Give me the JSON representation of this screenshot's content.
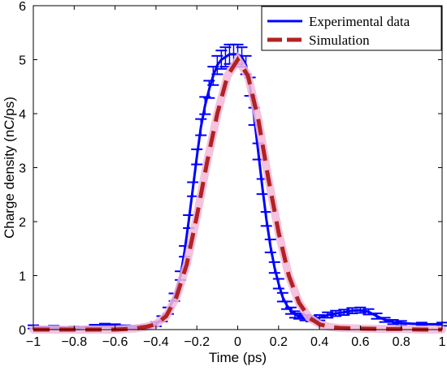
{
  "chart_data": {
    "type": "line",
    "xlabel": "Time (ps)",
    "ylabel": "Charge density (nC/ps)",
    "xlim": [
      -1,
      1
    ],
    "ylim": [
      0,
      6
    ],
    "xticks": [
      -1,
      -0.8,
      -0.6,
      -0.4,
      -0.2,
      0,
      0.2,
      0.4,
      0.6,
      0.8,
      1
    ],
    "yticks": [
      0,
      1,
      2,
      3,
      4,
      5,
      6
    ],
    "xtick_labels": [
      "−1",
      "−0.8",
      "−0.6",
      "−0.4",
      "−0.2",
      "0",
      "0.2",
      "0.4",
      "0.6",
      "0.8",
      "1"
    ],
    "ytick_labels": [
      "0",
      "1",
      "2",
      "3",
      "4",
      "5",
      "6"
    ],
    "grid": false,
    "legend_position": "top-right",
    "series": [
      {
        "name": "Experimental data",
        "color": "#0000ff",
        "style": "solid-with-errorbars",
        "x": [
          -1.0,
          -0.9,
          -0.8,
          -0.7,
          -0.65,
          -0.6,
          -0.55,
          -0.5,
          -0.45,
          -0.4,
          -0.37,
          -0.34,
          -0.31,
          -0.28,
          -0.26,
          -0.24,
          -0.22,
          -0.2,
          -0.18,
          -0.16,
          -0.14,
          -0.12,
          -0.1,
          -0.08,
          -0.06,
          -0.04,
          -0.02,
          0.0,
          0.02,
          0.04,
          0.06,
          0.08,
          0.1,
          0.12,
          0.14,
          0.16,
          0.18,
          0.2,
          0.22,
          0.24,
          0.26,
          0.28,
          0.3,
          0.33,
          0.36,
          0.4,
          0.44,
          0.48,
          0.52,
          0.56,
          0.6,
          0.64,
          0.68,
          0.72,
          0.76,
          0.8,
          0.9,
          1.0
        ],
        "y": [
          0.05,
          0.04,
          0.03,
          0.06,
          0.08,
          0.07,
          0.05,
          0.04,
          0.05,
          0.1,
          0.2,
          0.35,
          0.6,
          1.0,
          1.45,
          2.0,
          2.6,
          3.2,
          3.75,
          4.15,
          4.45,
          4.7,
          4.9,
          5.0,
          5.05,
          5.1,
          5.1,
          5.1,
          5.05,
          4.9,
          4.5,
          3.95,
          3.3,
          2.65,
          2.05,
          1.55,
          1.15,
          0.85,
          0.6,
          0.45,
          0.35,
          0.28,
          0.25,
          0.22,
          0.2,
          0.22,
          0.27,
          0.3,
          0.32,
          0.35,
          0.36,
          0.33,
          0.25,
          0.18,
          0.14,
          0.12,
          0.1,
          0.1
        ],
        "errors": [
          0.03,
          0.03,
          0.03,
          0.03,
          0.03,
          0.03,
          0.03,
          0.03,
          0.03,
          0.04,
          0.05,
          0.06,
          0.07,
          0.08,
          0.1,
          0.12,
          0.13,
          0.14,
          0.15,
          0.16,
          0.16,
          0.17,
          0.17,
          0.17,
          0.18,
          0.18,
          0.18,
          0.18,
          0.18,
          0.17,
          0.17,
          0.16,
          0.15,
          0.14,
          0.13,
          0.12,
          0.1,
          0.09,
          0.08,
          0.07,
          0.06,
          0.06,
          0.05,
          0.05,
          0.05,
          0.05,
          0.05,
          0.05,
          0.05,
          0.05,
          0.05,
          0.05,
          0.05,
          0.04,
          0.04,
          0.04,
          0.03,
          0.03
        ]
      },
      {
        "name": "Simulation",
        "color": "#b22222",
        "style": "dashed",
        "x": [
          -1.0,
          -0.9,
          -0.8,
          -0.7,
          -0.6,
          -0.5,
          -0.45,
          -0.4,
          -0.35,
          -0.3,
          -0.25,
          -0.2,
          -0.15,
          -0.1,
          -0.05,
          0.0,
          0.05,
          0.1,
          0.15,
          0.2,
          0.25,
          0.3,
          0.35,
          0.4,
          0.45,
          0.5,
          0.6,
          0.7,
          0.8,
          0.9,
          1.0
        ],
        "y": [
          0.0,
          0.0,
          0.0,
          0.0,
          0.0,
          0.02,
          0.05,
          0.1,
          0.25,
          0.6,
          1.2,
          2.1,
          3.1,
          4.0,
          4.7,
          5.0,
          4.7,
          3.9,
          2.8,
          1.8,
          1.0,
          0.5,
          0.22,
          0.1,
          0.05,
          0.03,
          0.02,
          0.01,
          0.01,
          0.0,
          0.0
        ]
      }
    ]
  }
}
